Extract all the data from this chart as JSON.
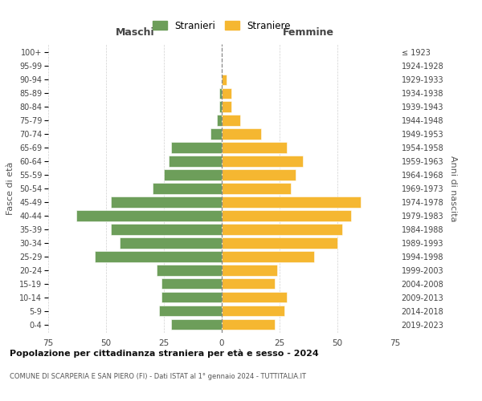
{
  "age_groups": [
    "0-4",
    "5-9",
    "10-14",
    "15-19",
    "20-24",
    "25-29",
    "30-34",
    "35-39",
    "40-44",
    "45-49",
    "50-54",
    "55-59",
    "60-64",
    "65-69",
    "70-74",
    "75-79",
    "80-84",
    "85-89",
    "90-94",
    "95-99",
    "100+"
  ],
  "birth_years": [
    "2019-2023",
    "2014-2018",
    "2009-2013",
    "2004-2008",
    "1999-2003",
    "1994-1998",
    "1989-1993",
    "1984-1988",
    "1979-1983",
    "1974-1978",
    "1969-1973",
    "1964-1968",
    "1959-1963",
    "1954-1958",
    "1949-1953",
    "1944-1948",
    "1939-1943",
    "1934-1938",
    "1929-1933",
    "1924-1928",
    "≤ 1923"
  ],
  "maschi": [
    22,
    27,
    26,
    26,
    28,
    55,
    44,
    48,
    63,
    48,
    30,
    25,
    23,
    22,
    5,
    2,
    1,
    1,
    0,
    0,
    0
  ],
  "femmine": [
    23,
    27,
    28,
    23,
    24,
    40,
    50,
    52,
    56,
    60,
    30,
    32,
    35,
    28,
    17,
    8,
    4,
    4,
    2,
    0,
    0
  ],
  "male_color": "#6d9e5a",
  "female_color": "#f5b731",
  "background_color": "#ffffff",
  "grid_color": "#cccccc",
  "title": "Popolazione per cittadinanza straniera per età e sesso - 2024",
  "subtitle": "COMUNE DI SCARPERIA E SAN PIERO (FI) - Dati ISTAT al 1° gennaio 2024 - TUTTITALIA.IT",
  "xlabel_left": "Maschi",
  "xlabel_right": "Femmine",
  "ylabel_left": "Fasce di età",
  "ylabel_right": "Anni di nascita",
  "legend_male": "Stranieri",
  "legend_female": "Straniere",
  "xlim": 75
}
